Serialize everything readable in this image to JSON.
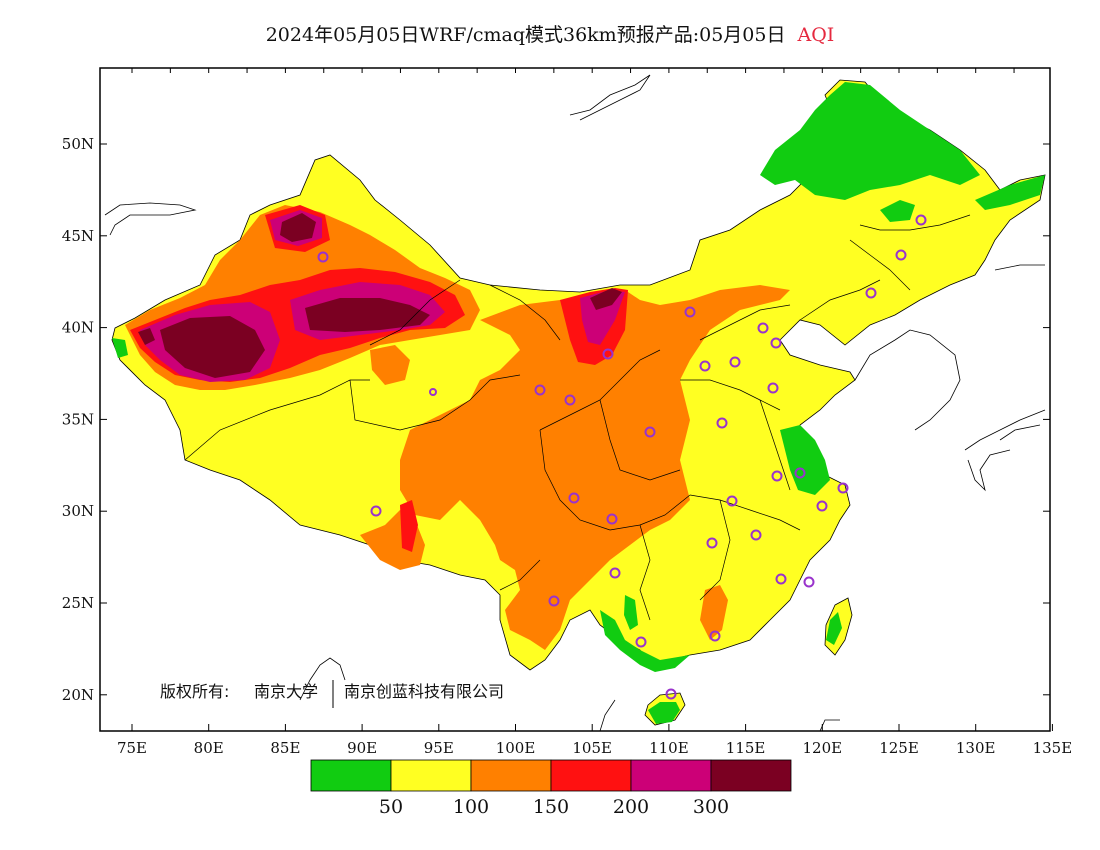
{
  "title": {
    "main": "2024年05月05日WRF/cmaq模式36km预报产品:05月05日",
    "variable": "AQI"
  },
  "axes": {
    "lon_ticks": [
      "75E",
      "80E",
      "85E",
      "90E",
      "95E",
      "100E",
      "105E",
      "110E",
      "115E",
      "120E",
      "125E",
      "130E",
      "135E"
    ],
    "lat_ticks": [
      "50N",
      "45N",
      "40N",
      "35N",
      "30N",
      "25N",
      "20N"
    ]
  },
  "copyright": {
    "prefix": "版权所有:",
    "org1": "南京大学",
    "org2": "南京创蓝科技有限公司"
  },
  "legend": {
    "colors": [
      "#11cc11",
      "#ffff22",
      "#ff8000",
      "#ff1111",
      "#cc0077",
      "#7b0022"
    ],
    "labels": [
      "50",
      "100",
      "150",
      "200",
      "300"
    ]
  },
  "colors": {
    "good": "#11cc11",
    "moderate": "#ffff22",
    "sensitive": "#ff8000",
    "unhealthy": "#ff1111",
    "very_unhealthy": "#cc0077",
    "hazardous": "#7b0022",
    "station_marker": "#9933cc"
  }
}
